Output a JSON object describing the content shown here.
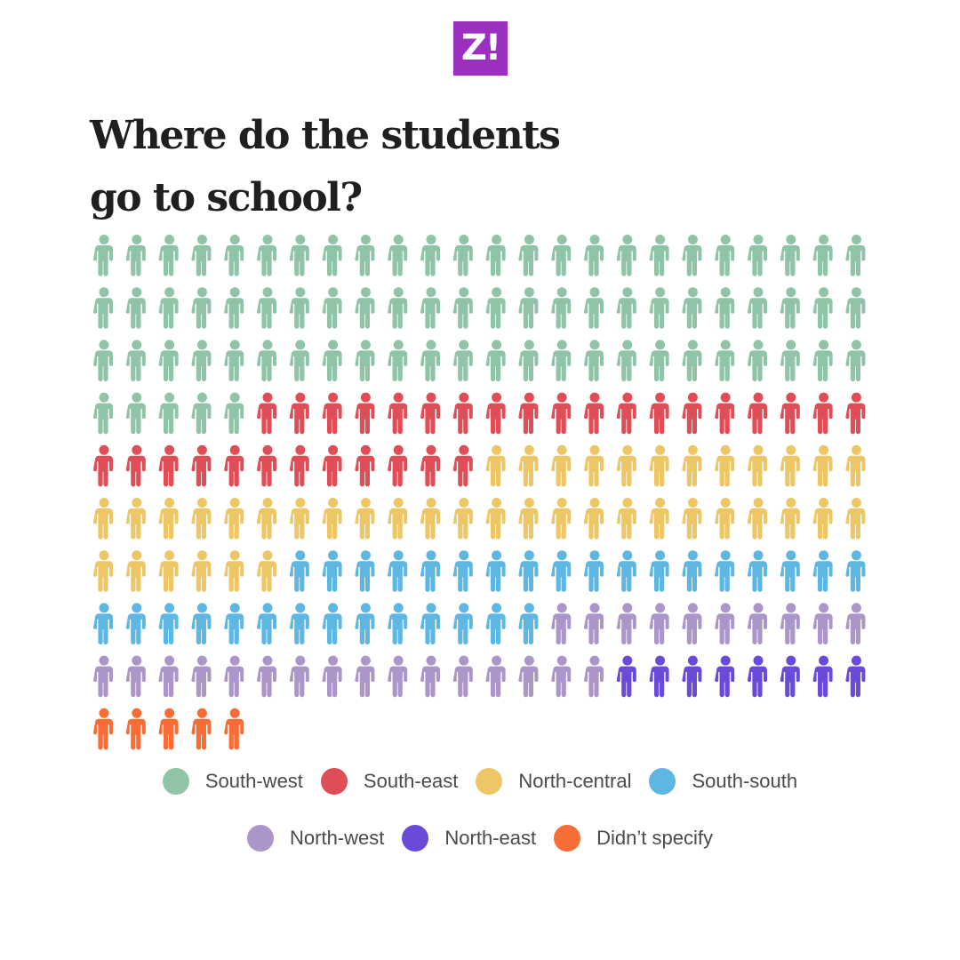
{
  "logo": {
    "text": "Z!",
    "color": "#9b2fbf"
  },
  "title": {
    "line1": "Where do the students",
    "line2": "go to school?"
  },
  "chart_data": {
    "type": "pictogram",
    "unit": "person-icon",
    "icons_per_row": 24,
    "series": [
      {
        "name": "South-west",
        "value": 77,
        "color": "#8fc4a6"
      },
      {
        "name": "South-east",
        "value": 31,
        "color": "#df4e57"
      },
      {
        "name": "North-central",
        "value": 42,
        "color": "#edc766"
      },
      {
        "name": "South-south",
        "value": 32,
        "color": "#5eb6e2"
      },
      {
        "name": "North-west",
        "value": 26,
        "color": "#ab95c9"
      },
      {
        "name": "North-east",
        "value": 8,
        "color": "#6a4bd9"
      },
      {
        "name": "Didn’t specify",
        "value": 5,
        "color": "#f86c35"
      }
    ]
  },
  "legend": {
    "row1": [
      {
        "label": "South-west",
        "color": "#8fc4a6"
      },
      {
        "label": "South-east",
        "color": "#df4e57"
      },
      {
        "label": "North-central",
        "color": "#edc766"
      },
      {
        "label": "South-south",
        "color": "#5eb6e2"
      }
    ],
    "row2": [
      {
        "label": "North-west",
        "color": "#ab95c9"
      },
      {
        "label": "North-east",
        "color": "#6a4bd9"
      },
      {
        "label": "Didn’t specify",
        "color": "#f86c35"
      }
    ]
  }
}
